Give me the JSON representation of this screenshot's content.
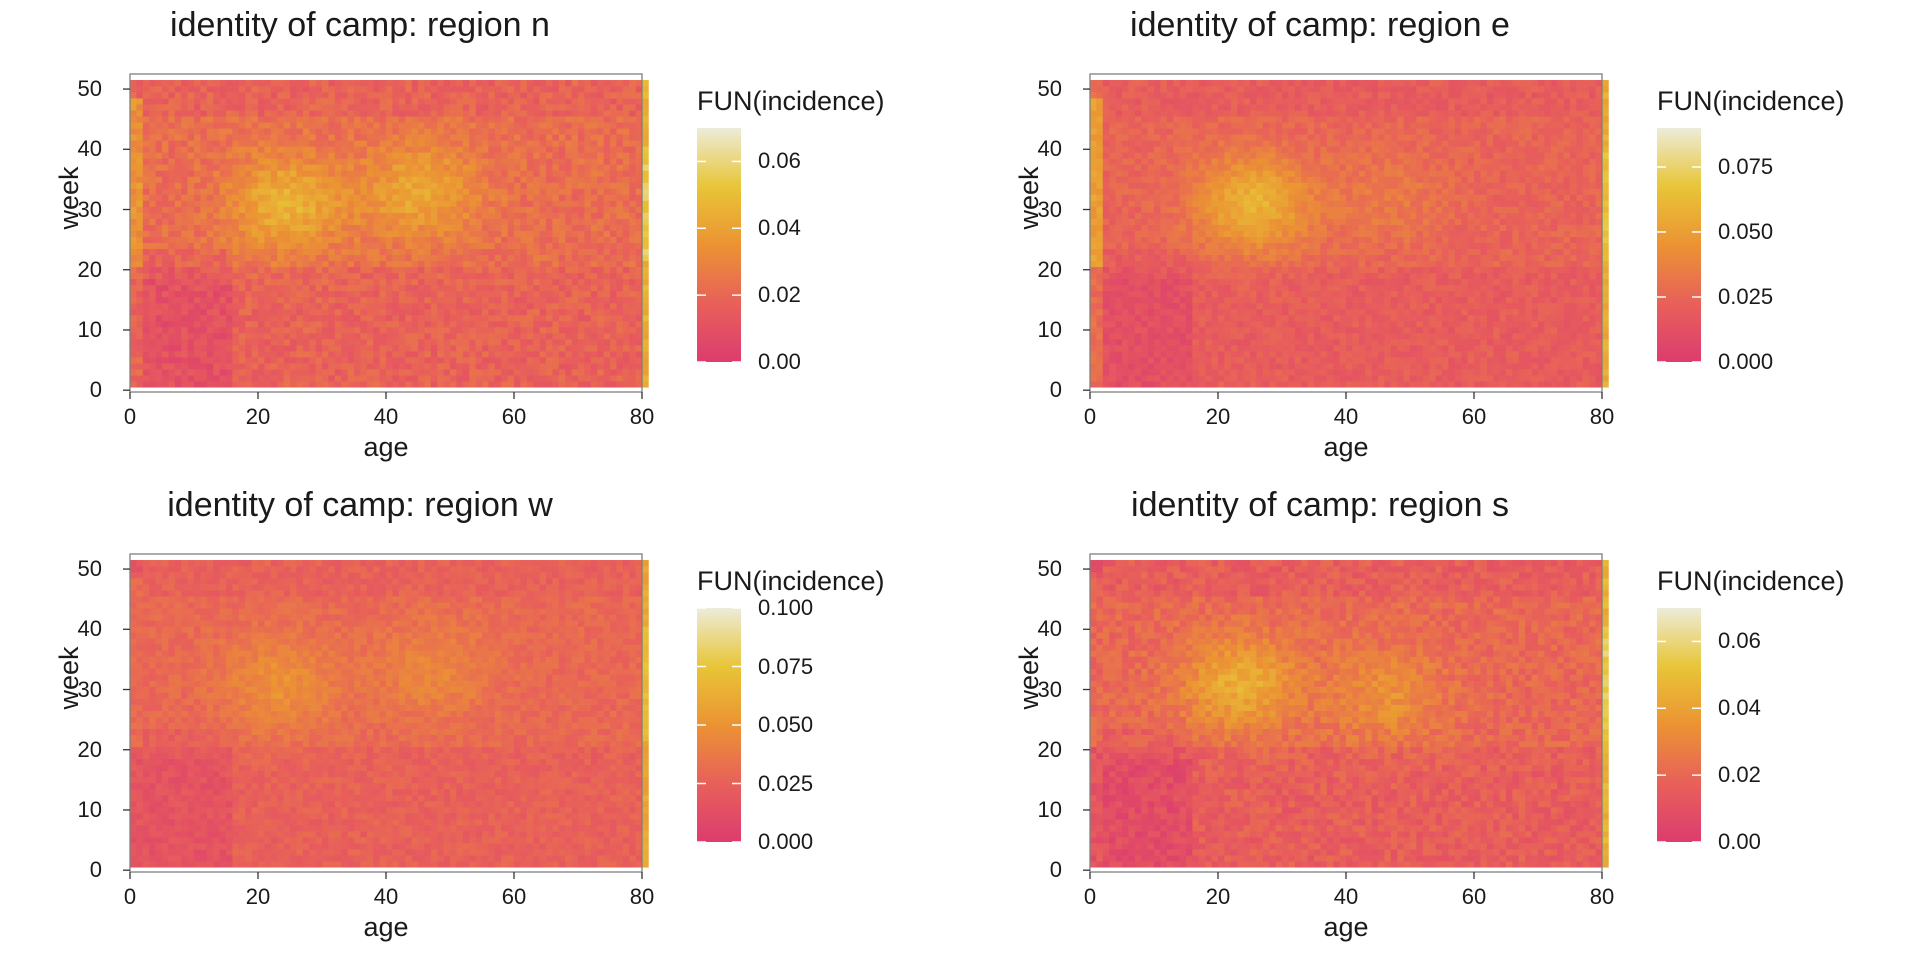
{
  "chart_data": [
    {
      "type": "heatmap",
      "title": "identity of camp: region n",
      "xlabel": "age",
      "ylabel": "week",
      "x_range": [
        0,
        80
      ],
      "y_range": [
        1,
        51
      ],
      "x_ticks": [
        "0",
        "20",
        "40",
        "60",
        "80"
      ],
      "y_ticks": [
        "0",
        "10",
        "20",
        "30",
        "40",
        "50"
      ],
      "legend_title": "FUN(incidence)",
      "legend_ticks": [
        "0.00",
        "0.02",
        "0.04",
        "0.06"
      ],
      "legend_tick_values": [
        0.0,
        0.02,
        0.04,
        0.06
      ],
      "legend_max": 0.07,
      "grid": false,
      "legend_position": "right",
      "pattern": {
        "base": 0.018,
        "hotspots": [
          {
            "age": 24,
            "week": 31,
            "peak": 0.042
          },
          {
            "age": 45,
            "week": 33,
            "peak": 0.038
          }
        ],
        "edge_age_0_1": 0.034,
        "edge_age_80": 0.045,
        "low_bands": [
          {
            "age_from": 2,
            "age_to": 15,
            "level": 0.01
          }
        ]
      }
    },
    {
      "type": "heatmap",
      "title": "identity of camp: region e",
      "xlabel": "age",
      "ylabel": "week",
      "x_range": [
        0,
        80
      ],
      "y_range": [
        1,
        51
      ],
      "x_ticks": [
        "0",
        "20",
        "40",
        "60",
        "80"
      ],
      "y_ticks": [
        "0",
        "10",
        "20",
        "30",
        "40",
        "50"
      ],
      "legend_title": "FUN(incidence)",
      "legend_ticks": [
        "0.000",
        "0.025",
        "0.050",
        "0.075"
      ],
      "legend_tick_values": [
        0.0,
        0.025,
        0.05,
        0.075
      ],
      "legend_max": 0.09,
      "grid": false,
      "legend_position": "right",
      "pattern": {
        "base": 0.02,
        "hotspots": [
          {
            "age": 25,
            "week": 31,
            "peak": 0.055
          },
          {
            "age": 46,
            "week": 32,
            "peak": 0.03
          }
        ],
        "edge_age_0_1": 0.05,
        "edge_age_80": 0.055,
        "low_bands": [
          {
            "age_from": 2,
            "age_to": 15,
            "level": 0.012
          }
        ]
      }
    },
    {
      "type": "heatmap",
      "title": "identity of camp: region w",
      "xlabel": "age",
      "ylabel": "week",
      "x_range": [
        0,
        80
      ],
      "y_range": [
        1,
        51
      ],
      "x_ticks": [
        "0",
        "20",
        "40",
        "60",
        "80"
      ],
      "y_ticks": [
        "0",
        "10",
        "20",
        "30",
        "40",
        "50"
      ],
      "legend_title": "FUN(incidence)",
      "legend_ticks": [
        "0.000",
        "0.025",
        "0.050",
        "0.075",
        "0.100"
      ],
      "legend_tick_values": [
        0.0,
        0.025,
        0.05,
        0.075,
        0.1
      ],
      "legend_max": 0.1,
      "grid": false,
      "legend_position": "right",
      "pattern": {
        "base": 0.025,
        "hotspots": [
          {
            "age": 23,
            "week": 31,
            "peak": 0.045
          },
          {
            "age": 47,
            "week": 33,
            "peak": 0.04
          }
        ],
        "edge_age_0_1": 0.03,
        "edge_age_80": 0.06,
        "low_bands": [
          {
            "age_from": 2,
            "age_to": 15,
            "level": 0.016
          }
        ]
      }
    },
    {
      "type": "heatmap",
      "title": "identity of camp: region s",
      "xlabel": "age",
      "ylabel": "week",
      "x_range": [
        0,
        80
      ],
      "y_range": [
        1,
        51
      ],
      "x_ticks": [
        "0",
        "20",
        "40",
        "60",
        "80"
      ],
      "y_ticks": [
        "0",
        "10",
        "20",
        "30",
        "40",
        "50"
      ],
      "legend_title": "FUN(incidence)",
      "legend_ticks": [
        "0.00",
        "0.02",
        "0.04",
        "0.06"
      ],
      "legend_tick_values": [
        0.0,
        0.02,
        0.04,
        0.06
      ],
      "legend_max": 0.07,
      "grid": false,
      "legend_position": "right",
      "pattern": {
        "base": 0.016,
        "hotspots": [
          {
            "age": 23,
            "week": 31,
            "peak": 0.04
          },
          {
            "age": 46,
            "week": 29,
            "peak": 0.03
          }
        ],
        "edge_age_0_1": 0.02,
        "edge_age_80": 0.045,
        "low_bands": [
          {
            "age_from": 2,
            "age_to": 15,
            "level": 0.008
          }
        ]
      }
    }
  ],
  "colors": {
    "low": "#dc3c6e",
    "mid_low": "#e8605a",
    "mid": "#eb9333",
    "mid_high": "#e8c537",
    "high": "#ececd9",
    "frame": "#7f7f7f",
    "text": "#1a1a1a"
  }
}
